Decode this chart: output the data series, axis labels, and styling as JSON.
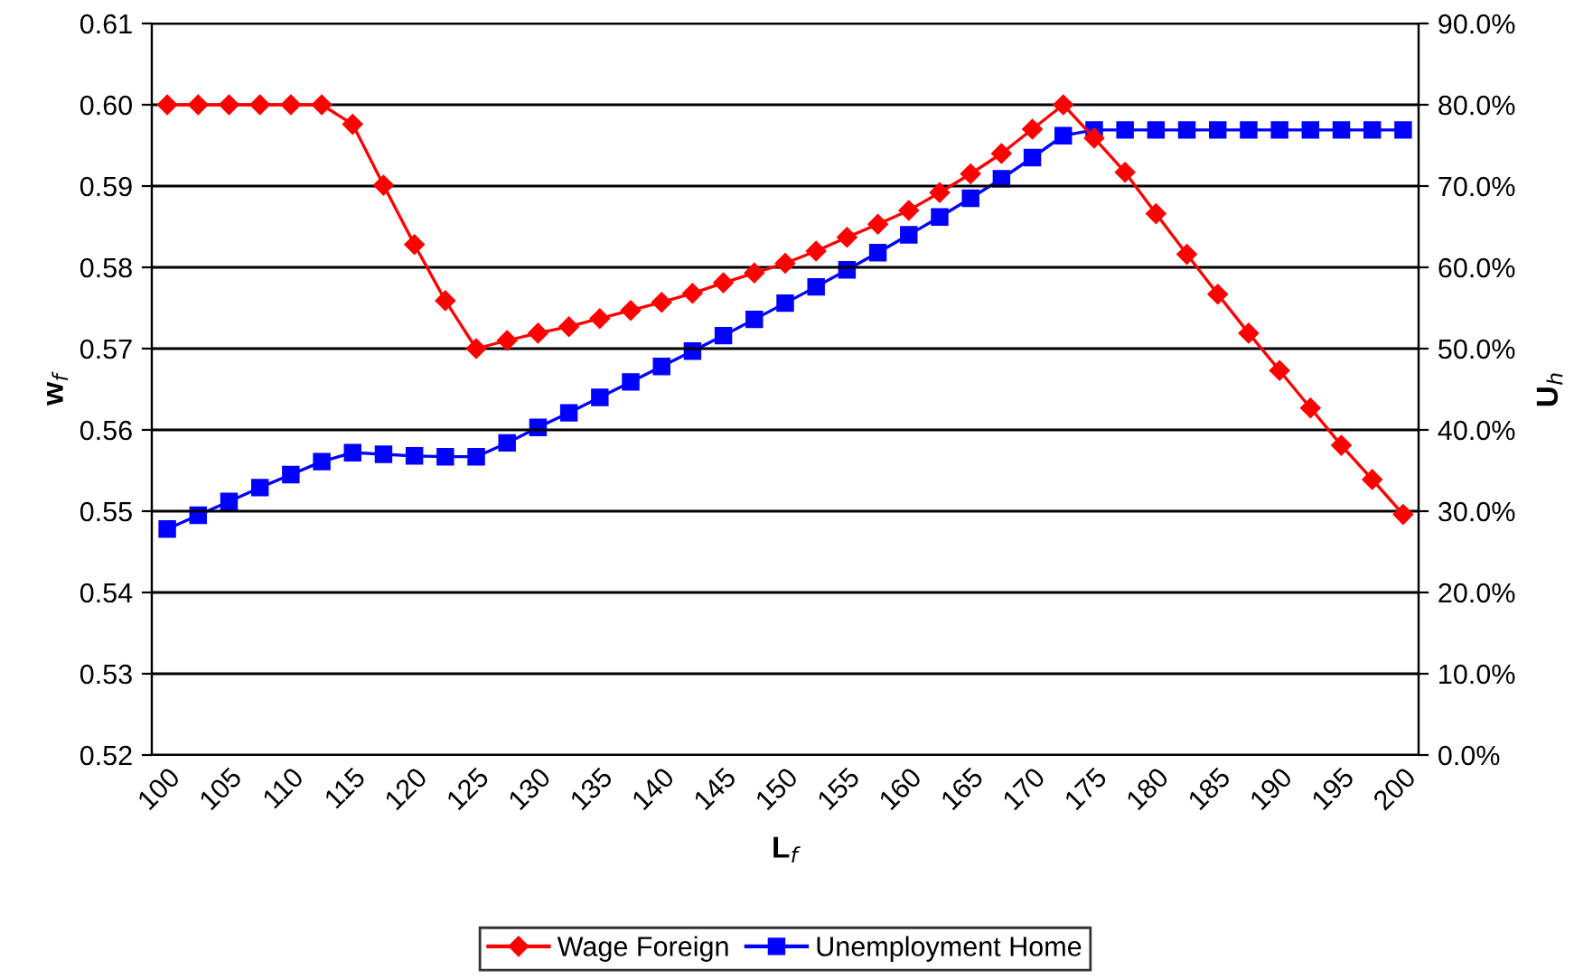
{
  "chart_data": {
    "type": "line",
    "xlabel": "L$_{f}$",
    "ylabel": "w$_{f}$",
    "y2label": "U$_{h}$",
    "categories": [
      "100",
      null,
      "105",
      null,
      "110",
      null,
      "115",
      null,
      "120",
      null,
      "125",
      null,
      "130",
      null,
      "135",
      null,
      "140",
      null,
      "145",
      null,
      "150",
      null,
      "155",
      null,
      "160",
      null,
      "165",
      null,
      "170",
      null,
      "175",
      null,
      "180",
      null,
      "185",
      null,
      "190",
      null,
      "195",
      null,
      "200"
    ],
    "series": [
      {
        "name": "Wage Foreign",
        "color": "#ff0000",
        "marker": "diamond",
        "values": [
          0.6,
          0.6,
          0.6,
          0.6,
          0.6,
          0.6,
          0.5976,
          0.5901,
          0.5828,
          0.5759,
          0.57,
          0.571,
          0.5719,
          0.5727,
          0.5737,
          0.5747,
          0.5757,
          0.5768,
          0.5781,
          0.5793,
          0.5805,
          0.582,
          0.5837,
          0.5853,
          0.587,
          0.5892,
          0.5915,
          0.594,
          0.597,
          0.6,
          0.5959,
          0.5917,
          0.5866,
          0.5816,
          0.5767,
          0.5719,
          0.5673,
          0.5627,
          0.5581,
          0.5539,
          0.5496
        ]
      },
      {
        "name": "Unemployment Home",
        "color": "#0000ff",
        "marker": "square",
        "axis": "y2",
        "values": [
          27.8,
          29.5,
          31.2,
          32.9,
          34.5,
          36.1,
          37.2,
          37.0,
          36.8,
          36.7,
          36.7,
          38.4,
          40.3,
          42.1,
          44.0,
          45.9,
          47.8,
          49.7,
          51.6,
          53.6,
          55.6,
          57.6,
          59.7,
          61.8,
          64.0,
          66.2,
          68.5,
          70.9,
          73.5,
          76.2,
          76.9,
          76.9,
          76.9,
          76.9,
          76.9,
          76.9,
          76.9,
          76.9,
          76.9,
          76.9,
          76.9
        ]
      }
    ],
    "ylim": [
      0.52,
      0.61
    ],
    "yticks": [
      {
        "value": 0.52,
        "label": "0.52"
      },
      {
        "value": 0.53,
        "label": "0.53"
      },
      {
        "value": 0.54,
        "label": "0.54"
      },
      {
        "value": 0.55,
        "label": "0.55"
      },
      {
        "value": 0.56,
        "label": "0.56"
      },
      {
        "value": 0.57,
        "label": "0.57"
      },
      {
        "value": 0.58,
        "label": "0.58"
      },
      {
        "value": 0.59,
        "label": "0.59"
      },
      {
        "value": 0.6,
        "label": "0.60"
      },
      {
        "value": 0.61,
        "label": "0.61"
      }
    ],
    "y2lim": [
      0,
      90
    ],
    "y2ticks": [
      {
        "value": 0,
        "label": "0.0%"
      },
      {
        "value": 10,
        "label": "10.0%"
      },
      {
        "value": 20,
        "label": "20.0%"
      },
      {
        "value": 30,
        "label": "30.0%"
      },
      {
        "value": 40,
        "label": "40.0%"
      },
      {
        "value": 50,
        "label": "50.0%"
      },
      {
        "value": 60,
        "label": "60.0%"
      },
      {
        "value": 70,
        "label": "70.0%"
      },
      {
        "value": 80,
        "label": "80.0%"
      },
      {
        "value": 90,
        "label": "90.0%"
      }
    ],
    "grid": "y",
    "legend": "bottom"
  }
}
